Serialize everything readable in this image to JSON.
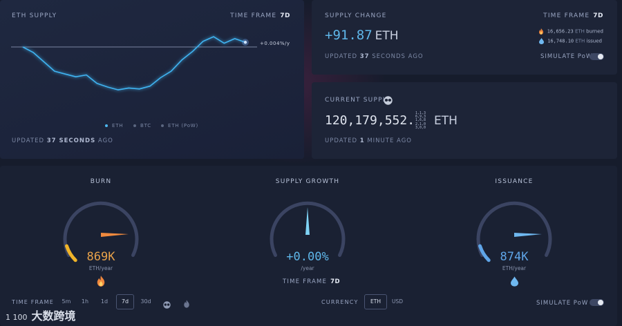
{
  "eth_supply_panel": {
    "title": "ETH SUPPLY",
    "time_frame_label": "TIME FRAME",
    "time_frame_value": "7d",
    "reference_label": "+0.004%/y",
    "legend": [
      {
        "label": "ETH",
        "color": "#4db8f0"
      },
      {
        "label": "BTC",
        "color": "#5b6680"
      },
      {
        "label": "ETH (PoW)",
        "color": "#5b6680"
      }
    ],
    "updated_prefix": "UPDATED",
    "updated_value": "37 SECONDS",
    "updated_suffix": "AGO"
  },
  "supply_change_panel": {
    "title": "SUPPLY CHANGE",
    "value": "+91.87",
    "unit": "ETH",
    "time_frame_label": "TIME FRAME",
    "time_frame_value": "7d",
    "burned_value": "16,656.23",
    "burned_unit": "ETH",
    "burned_label": "burned",
    "issued_value": "16,748.10",
    "issued_unit": "ETH",
    "issued_label": "issued",
    "updated_prefix": "UPDATED",
    "updated_value": "37",
    "updated_suffix": "SECONDS AGO",
    "simulate_label": "SIMULATE PoW",
    "simulate_on": false
  },
  "current_supply_panel": {
    "title": "CURRENT SUPPLY",
    "value": "120,179,552.",
    "decimals": [
      "1,1,3",
      "6,9,3",
      "1,6,8",
      "2,1,0",
      "3,0,0"
    ],
    "unit": "ETH",
    "updated_prefix": "UPDATED",
    "updated_value": "1",
    "updated_suffix": "MINUTE AGO"
  },
  "gauges": {
    "burn": {
      "title": "BURN",
      "value": "869K",
      "unit": "ETH/year",
      "color": "#e8a24a",
      "fill": 0.1
    },
    "supply_growth": {
      "title": "SUPPLY GROWTH",
      "value": "+0.00%",
      "unit": "/year",
      "color": "#5fb7ea",
      "fill": 0.5,
      "time_frame_label": "TIME FRAME",
      "time_frame_value": "7d"
    },
    "issuance": {
      "title": "ISSUANCE",
      "value": "874K",
      "unit": "ETH/year",
      "color": "#5fa5e8",
      "fill": 0.1
    }
  },
  "bottom_controls": {
    "time_frame_label": "TIME FRAME",
    "time_frames": [
      "5m",
      "1h",
      "1d",
      "7d",
      "30d"
    ],
    "active_time_frame": "7d",
    "currency_label": "CURRENCY",
    "currencies": [
      "ETH",
      "USD"
    ],
    "active_currency": "ETH",
    "simulate_label": "SIMULATE PoW"
  },
  "watermark": {
    "text": "大数跨境",
    "logo": "1 100"
  },
  "chart_data": {
    "type": "line",
    "title": "ETH SUPPLY",
    "series": [
      {
        "name": "ETH",
        "values": [
          0,
          -0.6,
          -1.6,
          -2.6,
          -2.9,
          -3.2,
          -3.0,
          -3.9,
          -4.3,
          -4.6,
          -4.4,
          -4.5,
          -4.2,
          -3.3,
          -2.6,
          -1.4,
          -0.5,
          0.6,
          1.1,
          0.4,
          0.9,
          0.5
        ]
      }
    ],
    "reference_line": 0,
    "reference_label": "+0.004%/y",
    "grid": false,
    "legend_position": "bottom"
  }
}
